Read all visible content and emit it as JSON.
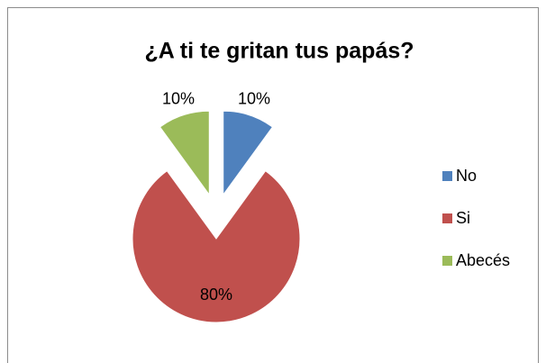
{
  "chart_data": {
    "type": "pie",
    "title": "¿A ti te gritan tus papás?",
    "categories": [
      "No",
      "Si",
      "Abecés"
    ],
    "values": [
      10,
      80,
      10
    ],
    "value_labels": [
      "10%",
      "80%",
      "10%"
    ],
    "colors": [
      "#4f81bd",
      "#c0504d",
      "#9bbb59"
    ],
    "legend": "right"
  }
}
